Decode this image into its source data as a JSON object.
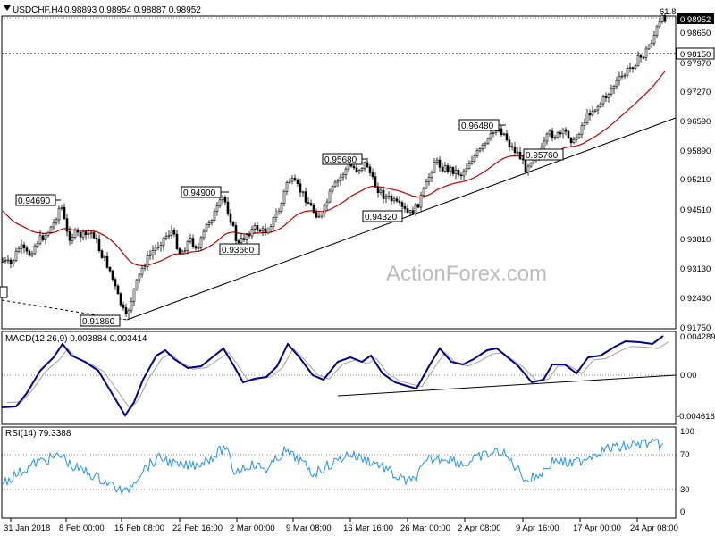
{
  "header": {
    "symbol": "USDCHF,H4",
    "ohlc": "0.98893 0.98954 0.98887 0.98952",
    "fib_label": "61.8"
  },
  "watermark": "ActionForex.com",
  "colors": {
    "candle": "#000000",
    "ema": "#c00000",
    "macd": "#00008b",
    "signal": "#a0a0a0",
    "rsi": "#1e90ff",
    "watermark": "#bdbdbd"
  },
  "chart_data": [
    {
      "type": "candlestick",
      "title": "USDCHF,H4",
      "y_ticks": [
        "0.98952",
        "0.98650",
        "0.98150",
        "0.97970",
        "0.97270",
        "0.96590",
        "0.95890",
        "0.95210",
        "0.94510",
        "0.93810",
        "0.93130",
        "0.92430",
        "0.91750"
      ],
      "ylim": [
        0.9175,
        0.9895
      ],
      "current_price": "0.98952",
      "reference_level": "0.98150",
      "annotations": [
        {
          "label": "0.94690",
          "value": 0.9469,
          "date": "5 Feb"
        },
        {
          "label": "0.91860",
          "value": 0.9186,
          "date": "15 Feb"
        },
        {
          "label": "0.94900",
          "value": 0.949,
          "date": "22 Feb"
        },
        {
          "label": "0.93660",
          "value": 0.9366,
          "date": "2 Mar"
        },
        {
          "label": "0.95680",
          "value": 0.9568,
          "date": "14 Mar"
        },
        {
          "label": "0.94320",
          "value": 0.9432,
          "date": "26 Mar"
        },
        {
          "label": "0.96480",
          "value": 0.9648,
          "date": "6 Apr"
        },
        {
          "label": "0.95760",
          "value": 0.9576,
          "date": "12 Apr"
        }
      ],
      "trendlines": [
        "rising support from 0.91860 through 0.94320 and 0.95760",
        "dashed line into 0.91860"
      ],
      "ema_series": "red moving average"
    },
    {
      "type": "line",
      "title": "MACD(12,26,9) 0.003884 0.003414",
      "y_ticks": [
        "0.004289",
        "0.00",
        "-0.004616"
      ],
      "ylim": [
        -0.004616,
        0.004289
      ],
      "series": [
        {
          "name": "MACD"
        },
        {
          "name": "Signal"
        }
      ],
      "trendline": "rising support line"
    },
    {
      "type": "line",
      "title": "RSI(14) 79.3388",
      "y_ticks": [
        "100",
        "70",
        "30",
        "0"
      ],
      "ylim": [
        0,
        100
      ],
      "levels": [
        70,
        30
      ],
      "series": [
        {
          "name": "RSI(14)"
        }
      ]
    }
  ],
  "price_axis": [
    "0.98952",
    "0.98650",
    "0.98150",
    "0.97970",
    "0.97270",
    "0.96590",
    "0.95890",
    "0.95210",
    "0.94510",
    "0.93810",
    "0.93130",
    "0.92430",
    "0.91750"
  ],
  "macd_panel": {
    "label": "MACD(12,26,9) 0.003884 0.003414",
    "ticks": [
      "0.004289",
      "0.00",
      "-0.004616"
    ]
  },
  "rsi_panel": {
    "label": "RSI(14) 79.3388",
    "ticks": [
      "100",
      "70",
      "30",
      "0"
    ]
  },
  "time_axis": [
    "31 Jan 2018",
    "8 Feb 00:00",
    "15 Feb 08:00",
    "22 Feb 16:00",
    "2 Mar 00:00",
    "9 Mar 08:00",
    "16 Mar 16:00",
    "26 Mar 00:00",
    "2 Apr 08:00",
    "9 Apr 16:00",
    "17 Apr 00:00",
    "24 Apr 08:00"
  ],
  "price_labels": [
    "0.94690",
    "0.91860",
    "0.94900",
    "0.93660",
    "0.95680",
    "0.94320",
    "0.96480",
    "0.95760"
  ]
}
